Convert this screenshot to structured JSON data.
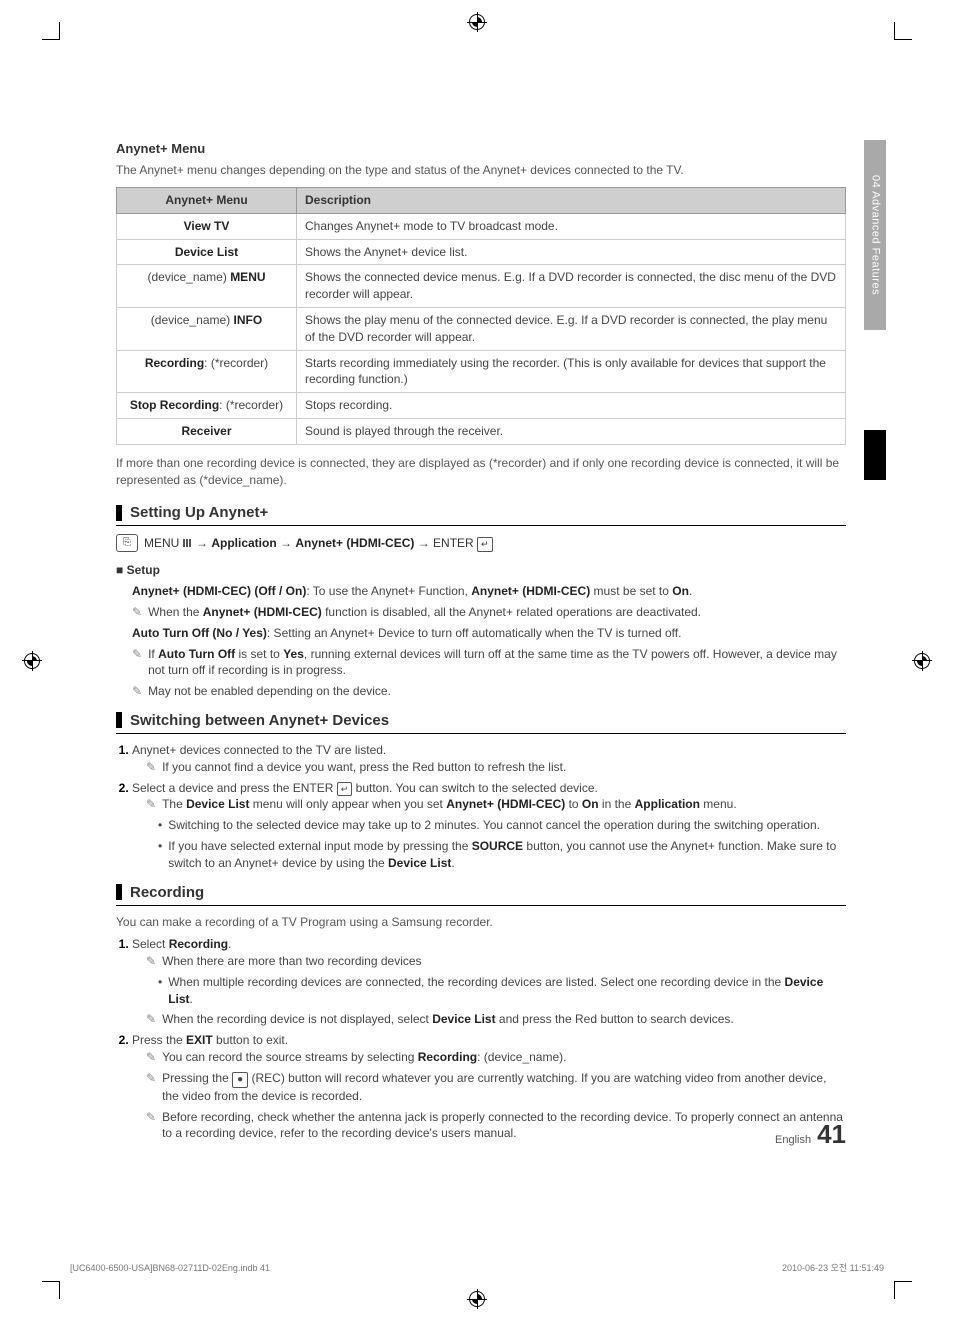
{
  "side_tab": "04  Advanced Features",
  "header": {
    "title": "Anynet+ Menu",
    "desc": "The Anynet+ menu changes depending on the type and status of the Anynet+ devices connected to the TV."
  },
  "table": {
    "col1": "Anynet+ Menu",
    "col2": "Description",
    "rows": [
      {
        "c1_html": "<b>View TV</b>",
        "c2": "Changes Anynet+ mode to TV broadcast mode."
      },
      {
        "c1_html": "<b>Device List</b>",
        "c2": "Shows the Anynet+ device list."
      },
      {
        "c1_html": "(device_name) <b>MENU</b>",
        "c2": "Shows the connected device menus. E.g. If a DVD recorder is connected, the disc menu of the DVD recorder will appear."
      },
      {
        "c1_html": "(device_name) <b>INFO</b>",
        "c2": "Shows the play menu of the connected device. E.g. If a DVD recorder is connected, the play menu of the DVD recorder will appear."
      },
      {
        "c1_html": "<b>Recording</b>: (*recorder)",
        "c2": "Starts recording immediately using the recorder. (This is only available for devices that support the recording function.)"
      },
      {
        "c1_html": "<b>Stop Recording</b>: (*recorder)",
        "c2": "Stops recording."
      },
      {
        "c1_html": "<b>Receiver</b>",
        "c2": "Sound is played through the receiver."
      }
    ]
  },
  "note_after_table": "If more than one recording device is connected, they are displayed as (*recorder) and if only one recording device is connected, it will be represented as (*device_name).",
  "sec_setup": {
    "title": "Setting Up Anynet+",
    "path_html": "MENU <span class='square-icon'><span></span><span></span><span></span></span> → <b>Application</b> → <b>Anynet+ (HDMI-CEC)</b> → ENTER <span class='enter-sym'>↵</span>",
    "sub": "Setup",
    "p1_html": "<b>Anynet+ (HDMI-CEC) (Off / On)</b>: To use the Anynet+ Function, <b>Anynet+ (HDMI-CEC)</b> must be set to <b>On</b>.",
    "tip1_html": "When the <b>Anynet+ (HDMI-CEC)</b> function is disabled, all the Anynet+ related operations are deactivated.",
    "p2_html": "<b>Auto Turn Off (No / Yes)</b>: Setting an Anynet+ Device to turn off automatically when the TV is turned off.",
    "tip2_html": "If <b>Auto Turn Off</b> is set to <b>Yes</b>, running external devices will turn off at the same time as the TV powers off. However, a device may not turn off if recording is in progress.",
    "tip3": "May not be enabled depending on the device."
  },
  "sec_switch": {
    "title": "Switching between Anynet+ Devices",
    "step1": "Anynet+ devices connected to the TV are listed.",
    "tip1": "If you cannot find a device you want, press the Red button to refresh the list.",
    "step2_html": "Select a device and press the ENTER <span class='enter-sym'>↵</span> button. You can switch to the selected device.",
    "tip2_html": "The <b>Device List</b> menu will only appear when you set <b>Anynet+ (HDMI-CEC)</b> to <b>On</b> in the <b>Application</b> menu.",
    "b1": "Switching to the selected device may take up to 2 minutes. You cannot cancel the operation during the switching operation.",
    "b2_html": "If you have selected external input mode by pressing the <b>SOURCE</b> button, you cannot use the Anynet+ function. Make sure to switch to an Anynet+ device by using the <b>Device List</b>."
  },
  "sec_rec": {
    "title": "Recording",
    "intro": "You can make a recording of a TV Program using a Samsung recorder.",
    "step1_html": "Select <b>Recording</b>.",
    "tip1": "When there are more than two recording devices",
    "b1_html": "When multiple recording devices are connected, the recording devices are listed. Select one recording device in the <b>Device List</b>.",
    "tip2_html": "When the recording device is not displayed, select <b>Device List</b> and press the Red button to search devices.",
    "step2_html": "Press the <b>EXIT</b> button to exit.",
    "tip3_html": "You can record the source streams by selecting <b>Recording</b>: (device_name).",
    "tip4_html": "Pressing the <span class='rec-btn'>●</span> (REC) button will record whatever you are currently watching. If you are watching video from another device, the video from the device is recorded.",
    "tip5": "Before recording, check whether the antenna jack is properly connected to the recording device. To properly connect an antenna to a recording device, refer to the recording device's users manual."
  },
  "page_lang": "English",
  "page_num": "41",
  "footer_left": "[UC6400-6500-USA]BN68-02711D-02Eng.indb   41",
  "footer_right": "2010-06-23   오전 11:51:49"
}
